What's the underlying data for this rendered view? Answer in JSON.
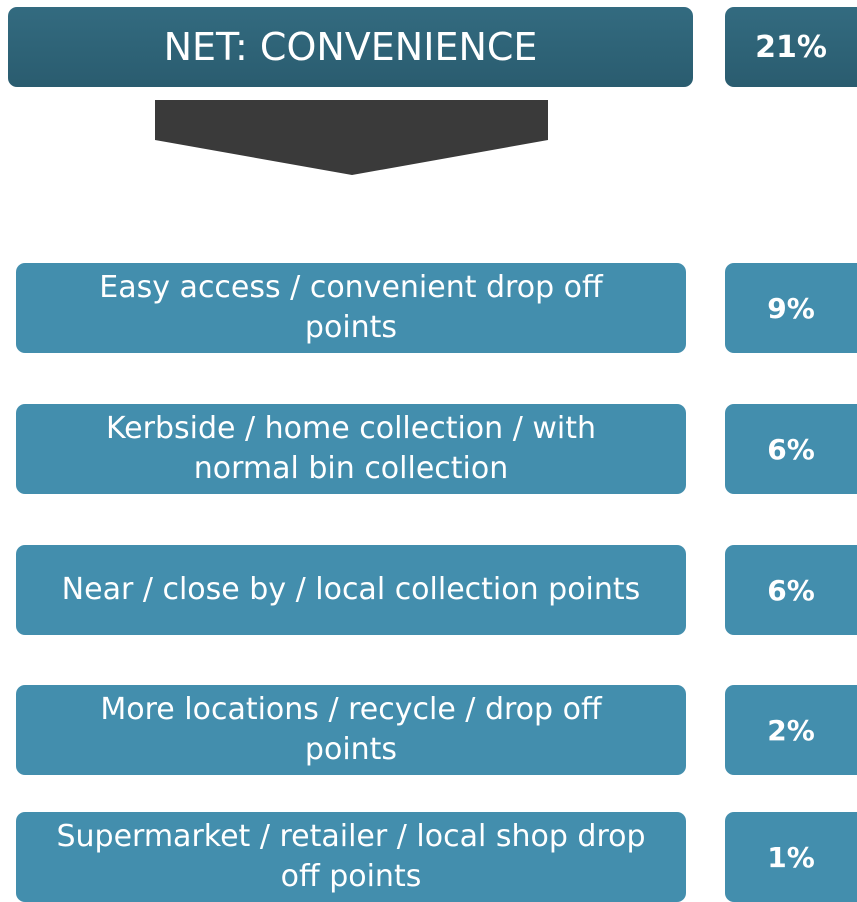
{
  "header": {
    "label": "NET: CONVENIENCE",
    "percent": "21%"
  },
  "items": [
    {
      "label": "Easy access / convenient drop off points",
      "percent": "9%"
    },
    {
      "label": "Kerbside / home collection / with normal bin collection",
      "percent": "6%"
    },
    {
      "label": "Near / close by / local collection points",
      "percent": "6%"
    },
    {
      "label": "More locations / recycle / drop off points",
      "percent": "2%"
    },
    {
      "label": "Supermarket / retailer / local shop drop off points",
      "percent": "1%"
    }
  ]
}
